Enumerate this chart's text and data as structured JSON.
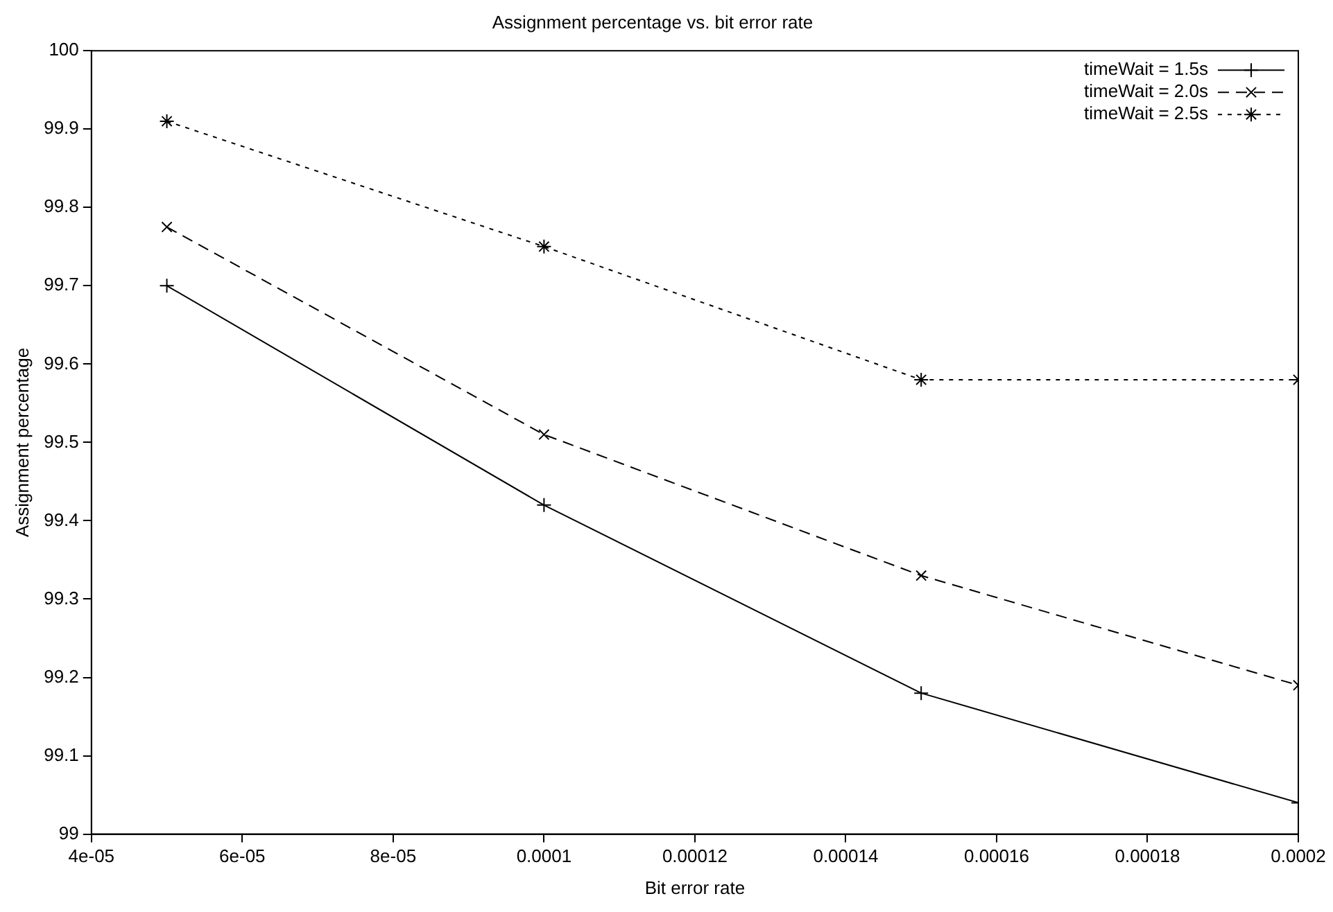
{
  "chart_data": {
    "type": "line",
    "title": "Assignment percentage vs. bit error rate",
    "xlabel": "Bit error rate",
    "ylabel": "Assignment percentage",
    "x": [
      5e-05,
      0.0001,
      0.00015,
      0.0002
    ],
    "series": [
      {
        "name": "timeWait = 1.5s",
        "color": "#000000",
        "values": [
          99.7,
          99.42,
          99.18,
          99.04
        ],
        "marker": "plus",
        "line_style": "solid"
      },
      {
        "name": "timeWait = 2.0s",
        "color": "#000000",
        "values": [
          99.775,
          99.51,
          99.33,
          99.19
        ],
        "marker": "x",
        "line_style": "dashed"
      },
      {
        "name": "timeWait = 2.5s",
        "color": "#000000",
        "values": [
          99.91,
          99.75,
          99.58,
          99.58
        ],
        "marker": "cross",
        "line_style": "dotted"
      }
    ],
    "xlim": [
      4e-05,
      0.0002
    ],
    "xticks": [
      {
        "value": 4e-05,
        "label": "4e-05"
      },
      {
        "value": 6e-05,
        "label": "6e-05"
      },
      {
        "value": 8e-05,
        "label": "8e-05"
      },
      {
        "value": 0.0001,
        "label": "0.0001"
      },
      {
        "value": 0.00012,
        "label": "0.00012"
      },
      {
        "value": 0.00014,
        "label": "0.00014"
      },
      {
        "value": 0.00016,
        "label": "0.00016"
      },
      {
        "value": 0.00018,
        "label": "0.00018"
      },
      {
        "value": 0.0002,
        "label": "0.0002"
      }
    ],
    "ylim": [
      99,
      100
    ],
    "yticks": [
      99,
      99.1,
      99.2,
      99.3,
      99.4,
      99.5,
      99.6,
      99.7,
      99.8,
      99.9,
      100
    ],
    "grid": false,
    "legend": "top right"
  }
}
